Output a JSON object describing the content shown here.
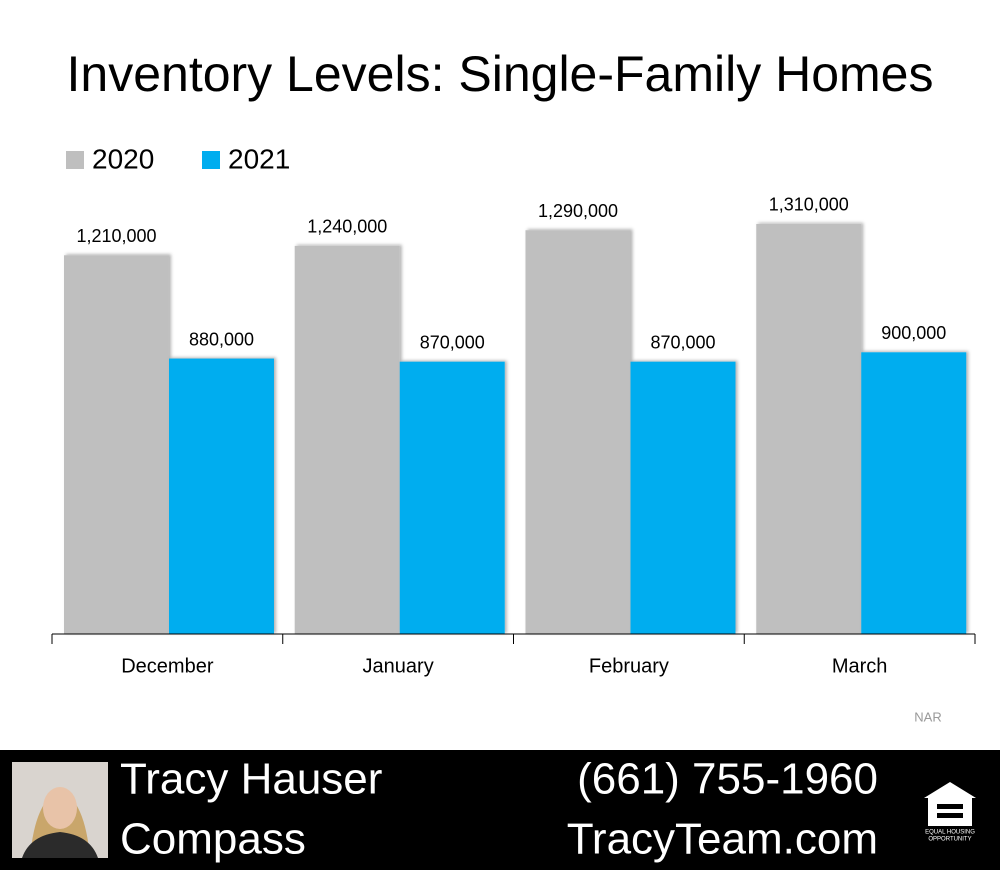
{
  "chart_data": {
    "type": "bar",
    "title": "Inventory Levels: Single-Family Homes",
    "categories": [
      "December",
      "January",
      "February",
      "March"
    ],
    "series": [
      {
        "name": "2020",
        "color": "#bfbfbf",
        "values": [
          1210000,
          1240000,
          1290000,
          1310000
        ],
        "value_labels": [
          "1,210,000",
          "1,240,000",
          "1,290,000",
          "1,310,000"
        ]
      },
      {
        "name": "2021",
        "color": "#00adef",
        "values": [
          880000,
          870000,
          870000,
          900000
        ],
        "value_labels": [
          "880,000",
          "870,000",
          "870,000",
          "900,000"
        ]
      }
    ],
    "source": "NAR",
    "legend": "top-left"
  },
  "footer": {
    "name": "Tracy Hauser",
    "company": "Compass",
    "phone": "(661) 755-1960",
    "website": "TracyTeam.com",
    "logo_text": [
      "EQUAL HOUSING",
      "OPPORTUNITY"
    ]
  }
}
